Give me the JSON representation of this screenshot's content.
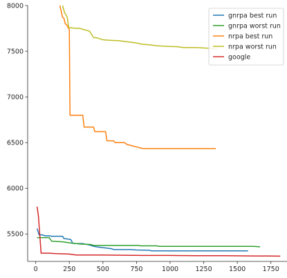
{
  "chart_data": {
    "type": "line",
    "title": "",
    "xlabel": "",
    "ylabel": "",
    "xlim": [
      -60,
      1870
    ],
    "ylim": [
      5200,
      8000
    ],
    "xticks": [
      0,
      250,
      500,
      750,
      1000,
      1250,
      1500,
      1750
    ],
    "yticks": [
      5500,
      6000,
      6500,
      7000,
      7500,
      8000
    ],
    "grid": false,
    "legend_position": "top-right",
    "series": [
      {
        "name": "gnrpa best run",
        "color": "#1f77b4",
        "points": [
          [
            10,
            5560
          ],
          [
            25,
            5490
          ],
          [
            50,
            5490
          ],
          [
            70,
            5480
          ],
          [
            100,
            5480
          ],
          [
            120,
            5475
          ],
          [
            200,
            5475
          ],
          [
            210,
            5450
          ],
          [
            260,
            5440
          ],
          [
            275,
            5400
          ],
          [
            290,
            5395
          ],
          [
            350,
            5395
          ],
          [
            380,
            5385
          ],
          [
            400,
            5380
          ],
          [
            420,
            5370
          ],
          [
            450,
            5360
          ],
          [
            500,
            5350
          ],
          [
            560,
            5340
          ],
          [
            580,
            5330
          ],
          [
            700,
            5330
          ],
          [
            750,
            5325
          ],
          [
            850,
            5322
          ],
          [
            860,
            5315
          ],
          [
            1000,
            5315
          ],
          [
            1200,
            5315
          ],
          [
            1400,
            5315
          ],
          [
            1580,
            5315
          ]
        ]
      },
      {
        "name": "gnrpa worst run",
        "color": "#2ca02c",
        "points": [
          [
            10,
            5460
          ],
          [
            100,
            5460
          ],
          [
            120,
            5420
          ],
          [
            200,
            5415
          ],
          [
            240,
            5405
          ],
          [
            270,
            5400
          ],
          [
            300,
            5395
          ],
          [
            330,
            5390
          ],
          [
            410,
            5385
          ],
          [
            430,
            5375
          ],
          [
            760,
            5375
          ],
          [
            780,
            5370
          ],
          [
            900,
            5370
          ],
          [
            920,
            5365
          ],
          [
            1620,
            5365
          ],
          [
            1670,
            5360
          ]
        ]
      },
      {
        "name": "nrpa best run",
        "color": "#ff7f0e",
        "points": [
          [
            180,
            8000
          ],
          [
            200,
            7870
          ],
          [
            210,
            7860
          ],
          [
            220,
            7800
          ],
          [
            230,
            7790
          ],
          [
            240,
            7760
          ],
          [
            250,
            7740
          ],
          [
            255,
            6800
          ],
          [
            350,
            6800
          ],
          [
            360,
            6670
          ],
          [
            430,
            6670
          ],
          [
            440,
            6620
          ],
          [
            520,
            6620
          ],
          [
            530,
            6520
          ],
          [
            580,
            6520
          ],
          [
            590,
            6500
          ],
          [
            660,
            6500
          ],
          [
            680,
            6480
          ],
          [
            730,
            6460
          ],
          [
            760,
            6450
          ],
          [
            780,
            6440
          ],
          [
            800,
            6435
          ],
          [
            1000,
            6435
          ],
          [
            1200,
            6435
          ],
          [
            1340,
            6435
          ]
        ]
      },
      {
        "name": "nrpa worst run",
        "color": "#bcbd22",
        "points": [
          [
            200,
            8000
          ],
          [
            215,
            7920
          ],
          [
            225,
            7900
          ],
          [
            235,
            7870
          ],
          [
            245,
            7760
          ],
          [
            300,
            7750
          ],
          [
            330,
            7750
          ],
          [
            350,
            7740
          ],
          [
            400,
            7720
          ],
          [
            430,
            7650
          ],
          [
            460,
            7645
          ],
          [
            500,
            7625
          ],
          [
            550,
            7620
          ],
          [
            620,
            7615
          ],
          [
            700,
            7600
          ],
          [
            750,
            7590
          ],
          [
            780,
            7580
          ],
          [
            800,
            7575
          ],
          [
            850,
            7570
          ],
          [
            900,
            7560
          ],
          [
            950,
            7555
          ],
          [
            1000,
            7552
          ],
          [
            1050,
            7550
          ],
          [
            1100,
            7540
          ],
          [
            1200,
            7540
          ],
          [
            1260,
            7535
          ],
          [
            1350,
            7532
          ]
        ]
      },
      {
        "name": "google",
        "color": "#d62728",
        "points": [
          [
            10,
            5800
          ],
          [
            20,
            5700
          ],
          [
            40,
            5290
          ],
          [
            100,
            5290
          ],
          [
            150,
            5285
          ],
          [
            250,
            5280
          ],
          [
            300,
            5270
          ],
          [
            500,
            5270
          ],
          [
            600,
            5268
          ],
          [
            800,
            5265
          ],
          [
            1000,
            5265
          ],
          [
            1200,
            5262
          ],
          [
            1400,
            5262
          ],
          [
            1600,
            5260
          ],
          [
            1820,
            5258
          ]
        ]
      }
    ]
  }
}
